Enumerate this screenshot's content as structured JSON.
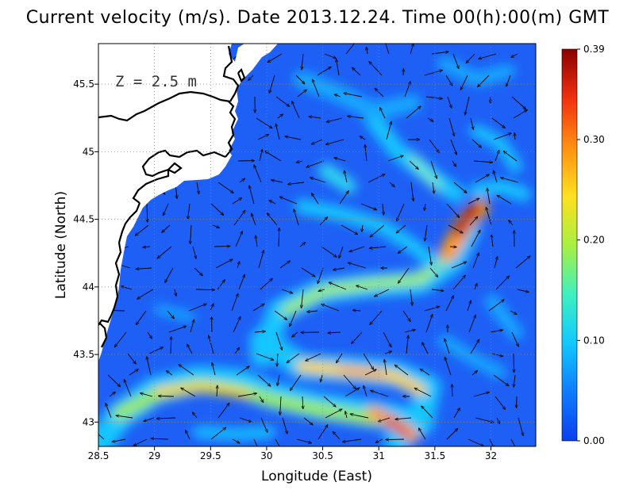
{
  "title": "Current velocity (m/s). Date 2013.12.24. Time 00(h):00(m) GMT",
  "depth_label": "Z = 2.5 m",
  "x_axis": {
    "label": "Longitude (East)",
    "range": [
      28.5,
      32.4
    ],
    "ticks": [
      "28.5",
      "29",
      "29.5",
      "30",
      "30.5",
      "31",
      "31.5",
      "32"
    ],
    "tick_values": [
      28.5,
      29,
      29.5,
      30,
      30.5,
      31,
      31.5,
      32
    ]
  },
  "y_axis": {
    "label": "Latitude (North)",
    "range": [
      42.82,
      45.8
    ],
    "ticks": [
      "43",
      "43.5",
      "44",
      "44.5",
      "45",
      "45.5"
    ],
    "tick_values": [
      43,
      43.5,
      44,
      44.5,
      45,
      45.5
    ]
  },
  "colorbar": {
    "range": [
      0,
      0.39
    ],
    "ticks": [
      "0.00",
      "0.10",
      "0.20",
      "0.30",
      "0.39"
    ],
    "tick_values": [
      0,
      0.1,
      0.2,
      0.3,
      0.39
    ],
    "colors": [
      "#0a3ff0",
      "#0f7cff",
      "#12c8ff",
      "#3ff0c0",
      "#a8f040",
      "#ffe020",
      "#ff9010",
      "#f03010",
      "#8b0000"
    ]
  },
  "ocean_background": "#1e5ff5",
  "land_color": "#ffffff",
  "coast_color": "#000000",
  "grid": true
}
